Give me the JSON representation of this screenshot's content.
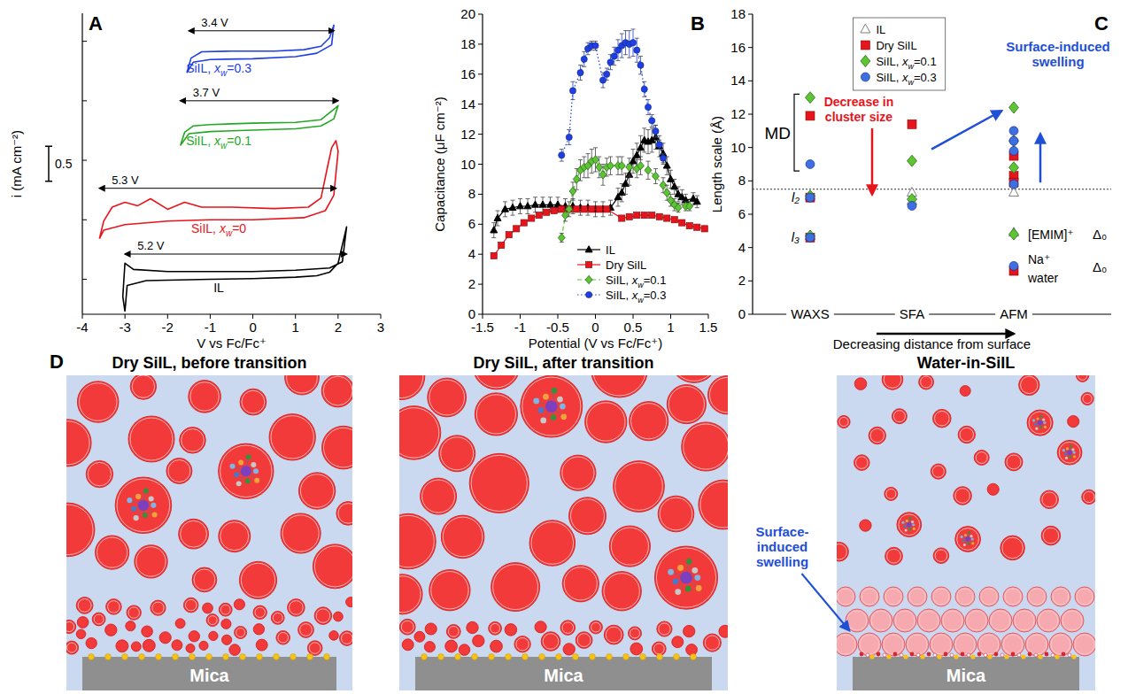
{
  "chart_data": [
    {
      "type": "line",
      "title": "A",
      "x_label": "V vs Fc/Fc⁺",
      "y_label": "i (mA cm⁻²)",
      "xlim": [
        -4,
        3
      ],
      "xticks": [
        -4,
        -3,
        -2,
        -1,
        0,
        1,
        2,
        3
      ],
      "ylim": [
        0,
        4.3
      ],
      "yticks": [
        0.5,
        1.35,
        2.2,
        3.05,
        3.9
      ],
      "tick_labels": "x",
      "series": [
        {
          "name": "IL",
          "color": "#000000",
          "x": [
            -3.0,
            -2.95,
            -2.5,
            -1,
            0,
            1,
            1.5,
            1.8,
            2.0,
            2.2,
            2.1,
            1.8,
            1,
            0,
            -1,
            -2,
            -2.8,
            -3.0,
            -3.05,
            -3.0
          ],
          "values": [
            0.04,
            0.41,
            0.48,
            0.5,
            0.51,
            0.53,
            0.55,
            0.6,
            0.73,
            1.25,
            0.75,
            0.66,
            0.63,
            0.61,
            0.61,
            0.61,
            0.64,
            0.73,
            0.25,
            0.04
          ]
        },
        {
          "name": "SiIL, xw=0",
          "color": "#e8141c",
          "x": [
            -3.6,
            -3.5,
            -3.3,
            -3.0,
            -2.7,
            -2.4,
            -2.0,
            -1.6,
            -1.2,
            -0.5,
            0.5,
            1.3,
            1.6,
            1.75,
            1.85,
            1.95,
            2.0,
            1.9,
            1.7,
            1.2,
            0,
            -1,
            -2,
            -3,
            -3.5,
            -3.6
          ],
          "values": [
            1.08,
            1.33,
            1.53,
            1.6,
            1.55,
            1.65,
            1.5,
            1.6,
            1.53,
            1.53,
            1.51,
            1.53,
            1.66,
            2.1,
            2.38,
            2.48,
            2.33,
            1.7,
            1.48,
            1.38,
            1.35,
            1.35,
            1.33,
            1.28,
            1.2,
            1.08
          ]
        },
        {
          "name": "SiIL, xw=0.1",
          "color": "#22a822",
          "x": [
            -1.7,
            -1.6,
            -1.4,
            -1,
            0,
            1,
            1.6,
            1.8,
            1.95,
            2.0,
            1.9,
            1.6,
            1,
            0,
            -1,
            -1.5,
            -1.7
          ],
          "values": [
            2.41,
            2.6,
            2.69,
            2.71,
            2.73,
            2.74,
            2.78,
            2.88,
            2.95,
            2.98,
            2.79,
            2.69,
            2.65,
            2.63,
            2.61,
            2.58,
            2.41
          ]
        },
        {
          "name": "SiIL, xw=0.3",
          "color": "#1f3fe0",
          "x": [
            -1.55,
            -1.45,
            -1.2,
            -0.5,
            0.5,
            1.2,
            1.6,
            1.8,
            1.9,
            1.85,
            1.5,
            1,
            0,
            -1,
            -1.4,
            -1.55
          ],
          "values": [
            3.45,
            3.66,
            3.75,
            3.76,
            3.76,
            3.78,
            3.83,
            3.95,
            4.13,
            3.85,
            3.73,
            3.68,
            3.65,
            3.64,
            3.6,
            3.45
          ]
        }
      ],
      "annotations": [
        {
          "text": "5.2 V",
          "x": [
            -3.0,
            2.2
          ],
          "y": 0.86,
          "color": "#000000"
        },
        {
          "text": "5.3 V",
          "x": [
            -3.6,
            1.95
          ],
          "y": 1.8,
          "color": "#000000"
        },
        {
          "text": "3.7 V",
          "x": [
            -1.7,
            2.0
          ],
          "y": 3.05,
          "color": "#000000"
        },
        {
          "text": "3.4 V",
          "x": [
            -1.5,
            1.9
          ],
          "y": 4.05,
          "color": "#000000"
        }
      ],
      "scale_bar": {
        "text": "0.5",
        "value": 0.5
      }
    },
    {
      "type": "line",
      "title": "B",
      "x_label": "Potential (V vs Fc/Fc⁺)",
      "y_label": "Capacitance (μF cm⁻²)",
      "xlim": [
        -1.5,
        1.5
      ],
      "xticks": [
        -1.5,
        -1,
        -0.5,
        0,
        0.5,
        1,
        1.5
      ],
      "ylim": [
        0,
        20
      ],
      "yticks": [
        0,
        2,
        4,
        6,
        8,
        10,
        12,
        14,
        16,
        18,
        20
      ],
      "legend": "bottom",
      "series": [
        {
          "name": "IL",
          "color": "#000000",
          "marker": "triangle",
          "line_style": "solid",
          "x": [
            -1.35,
            -1.3,
            -1.2,
            -1.1,
            -1.0,
            -0.9,
            -0.8,
            -0.7,
            -0.6,
            -0.5,
            -0.4,
            -0.3,
            -0.2,
            -0.1,
            0,
            0.1,
            0.2,
            0.3,
            0.35,
            0.4,
            0.45,
            0.5,
            0.55,
            0.6,
            0.65,
            0.7,
            0.75,
            0.8,
            0.85,
            0.9,
            0.95,
            1.0,
            1.05,
            1.1,
            1.15,
            1.2,
            1.3,
            1.35
          ],
          "values": [
            5.6,
            6.4,
            7.0,
            7.1,
            7.2,
            7.2,
            7.3,
            7.3,
            7.3,
            7.3,
            7.2,
            7.2,
            7.1,
            7.1,
            7.0,
            7.0,
            7.1,
            7.8,
            8.1,
            8.7,
            9.3,
            10.2,
            10.6,
            11.1,
            11.6,
            11.5,
            11.6,
            11.8,
            11.2,
            10.7,
            9.9,
            9.0,
            8.5,
            8.0,
            7.8,
            7.6,
            7.7,
            7.5
          ],
          "errors": [
            0.5,
            0.5,
            0.5,
            0.5,
            0.5,
            0.5,
            0.5,
            0.5,
            0.5,
            0.5,
            0.5,
            0.5,
            0.5,
            0.5,
            0.5,
            0.5,
            0.5,
            0.6,
            0.6,
            0.7,
            0.7,
            0.8,
            0.8,
            0.8,
            0.8,
            0.8,
            0.8,
            0.8,
            0.7,
            0.7,
            0.6,
            0.6,
            0.5,
            0.5,
            0.5,
            0.4,
            0.4,
            0.4
          ]
        },
        {
          "name": "Dry SiIL",
          "color": "#e8141c",
          "marker": "square",
          "line_style": "solid",
          "x": [
            -1.35,
            -1.25,
            -1.15,
            -1.05,
            -0.95,
            -0.85,
            -0.75,
            -0.65,
            -0.55,
            -0.45,
            -0.35,
            -0.25,
            -0.15,
            -0.05,
            0.05,
            0.15,
            0.35,
            0.45,
            0.55,
            0.65,
            0.75,
            0.85,
            0.95,
            1.05,
            1.15,
            1.25,
            1.35,
            1.45
          ],
          "values": [
            3.9,
            4.6,
            5.3,
            5.7,
            6.1,
            6.4,
            6.6,
            6.8,
            6.9,
            7.0,
            7.0,
            7.0,
            7.0,
            7.0,
            7.0,
            7.0,
            6.4,
            6.5,
            6.6,
            6.6,
            6.6,
            6.5,
            6.4,
            6.3,
            6.1,
            5.9,
            5.8,
            5.7
          ]
        },
        {
          "name": "SiIL, xw=0.1",
          "color": "#5cc531",
          "marker": "diamond",
          "line_style": "dashed",
          "x": [
            -0.45,
            -0.4,
            -0.35,
            -0.3,
            -0.25,
            -0.2,
            -0.15,
            -0.1,
            -0.05,
            0,
            0.05,
            0.1,
            0.15,
            0.2,
            0.3,
            0.35,
            0.45,
            0.55,
            0.6,
            0.7,
            0.8,
            0.9,
            0.95,
            1.0,
            1.05,
            1.1,
            1.2,
            1.25
          ],
          "values": [
            5.1,
            6.6,
            7.0,
            8.2,
            9.0,
            9.6,
            9.8,
            9.9,
            10.2,
            10.3,
            9.8,
            9.3,
            9.8,
            9.9,
            9.9,
            9.9,
            9.8,
            9.7,
            9.9,
            9.6,
            9.2,
            8.6,
            8.1,
            7.6,
            7.3,
            7.1,
            7.2,
            7.2
          ],
          "errors": [
            0.3,
            0.4,
            0.5,
            0.6,
            0.7,
            0.7,
            0.7,
            0.8,
            0.8,
            0.8,
            0.7,
            0.7,
            0.6,
            0.6,
            0.6,
            0.6,
            0.6,
            0.6,
            0.6,
            0.6,
            0.5,
            0.5,
            0.5,
            0.4,
            0.4,
            0.3,
            0.3,
            0.3
          ]
        },
        {
          "name": "SiIL, xw=0.3",
          "color": "#1f3fe0",
          "marker": "circle",
          "line_style": "dotted",
          "x": [
            -0.45,
            -0.35,
            -0.3,
            -0.2,
            -0.15,
            -0.1,
            -0.05,
            0,
            0.1,
            0.15,
            0.2,
            0.25,
            0.3,
            0.35,
            0.4,
            0.45,
            0.5,
            0.55,
            0.6,
            0.65,
            0.7,
            0.75,
            0.8,
            0.85,
            0.9
          ],
          "values": [
            10.6,
            11.8,
            14.9,
            16.1,
            17.0,
            17.7,
            17.9,
            17.9,
            15.6,
            16.0,
            16.8,
            17.2,
            17.6,
            17.9,
            18.1,
            18.0,
            18.1,
            17.6,
            16.6,
            15.0,
            13.8,
            12.9,
            12.2,
            11.3,
            10.4
          ],
          "errors": [
            0.4,
            0.5,
            0.6,
            0.5,
            0.5,
            0.4,
            0.3,
            0.3,
            0.5,
            0.4,
            0.5,
            0.6,
            0.7,
            0.8,
            0.8,
            0.9,
            0.9,
            0.8,
            0.6,
            0.5,
            0.5,
            0.4,
            0.4,
            0.3,
            0.3
          ]
        }
      ]
    },
    {
      "type": "scatter",
      "title": "C",
      "x_label": "Decreasing distance from surface",
      "y_label": "Length scale (Å)",
      "categories": [
        "WAXS",
        "SFA",
        "AFM"
      ],
      "ylim": [
        0,
        18
      ],
      "yticks": [
        0,
        2,
        4,
        6,
        8,
        10,
        12,
        14,
        16,
        18
      ],
      "legend": "top",
      "reference_y": 7.5,
      "series": [
        {
          "name": "IL",
          "color": "#808080",
          "marker": "open_triangle",
          "x": [
            "WAXS",
            "WAXS",
            "SFA",
            "SFA",
            "AFM",
            "AFM"
          ],
          "values": [
            7.1,
            4.7,
            7.3,
            6.8,
            7.3,
            4.9
          ]
        },
        {
          "name": "Dry SiIL",
          "color": "#e8141c",
          "marker": "square",
          "x": [
            "WAXS",
            "WAXS",
            "WAXS",
            "SFA",
            "AFM",
            "AFM",
            "AFM",
            "AFM"
          ],
          "values": [
            11.9,
            7.0,
            4.6,
            11.4,
            9.5,
            8.3,
            7.9,
            2.6
          ]
        },
        {
          "name": "SiIL, xw=0.1",
          "color": "#5cc531",
          "marker": "diamond",
          "x": [
            "WAXS",
            "WAXS",
            "WAXS",
            "SFA",
            "SFA",
            "AFM",
            "AFM",
            "AFM",
            "AFM"
          ],
          "values": [
            13.0,
            7.1,
            4.7,
            9.2,
            6.9,
            12.4,
            10.4,
            8.8,
            4.8
          ]
        },
        {
          "name": "SiIL, xw=0.3",
          "color": "#3d6fe0",
          "marker": "circle",
          "x": [
            "WAXS",
            "WAXS",
            "WAXS",
            "SFA",
            "AFM",
            "AFM",
            "AFM",
            "AFM",
            "AFM"
          ],
          "values": [
            9.0,
            7.0,
            4.6,
            6.5,
            11.0,
            10.4,
            9.8,
            7.8,
            2.9
          ]
        }
      ],
      "annotations": [
        {
          "text": "MD",
          "y": [
            8.6,
            13.2
          ]
        },
        {
          "text": "l₂",
          "y": 7.0
        },
        {
          "text": "l₃",
          "y": 4.6
        },
        {
          "text": "Decrease in cluster size",
          "color": "#e8141c"
        },
        {
          "text": "Surface-induced swelling",
          "color": "#1f4fd6"
        },
        {
          "text": "[EMIM]⁺",
          "y": 4.8
        },
        {
          "text": "Δ₀",
          "y": 4.8
        },
        {
          "text": "Na⁺",
          "y": 3.3
        },
        {
          "text": "water",
          "y": 2.2
        },
        {
          "text": "Δ₀",
          "y": 2.8
        }
      ]
    }
  ],
  "diagram": {
    "title": "D",
    "panels": [
      {
        "title": "Dry SiIL, before transition",
        "substrate": "Mica"
      },
      {
        "title": "Dry SiIL, after transition",
        "substrate": "Mica"
      },
      {
        "title": "Water-in-SiIL",
        "substrate": "Mica"
      }
    ],
    "annotation": "Surface-induced swelling"
  }
}
